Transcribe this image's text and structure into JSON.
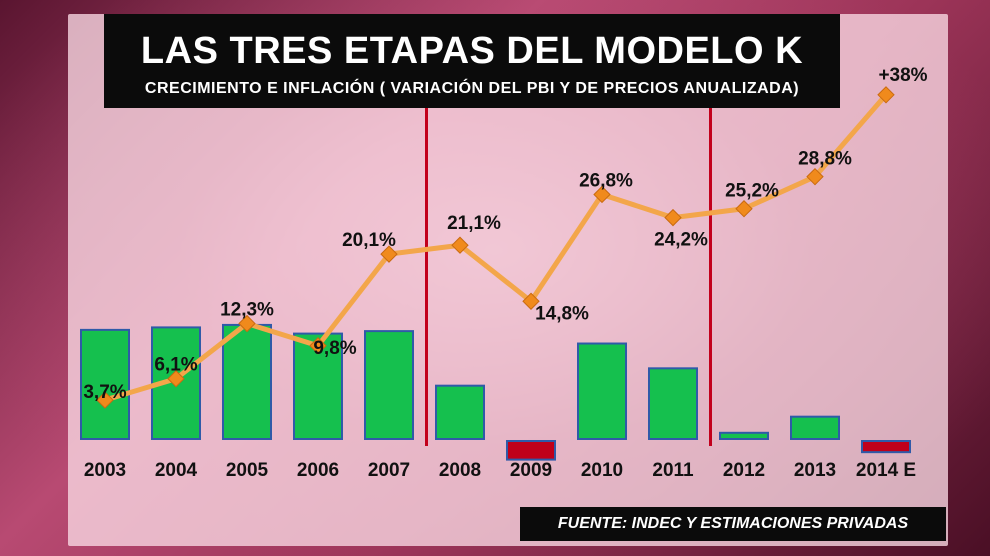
{
  "title": "LAS TRES ETAPAS DEL MODELO K",
  "subtitle": "CRECIMIENTO E INFLACIÓN ( VARIACIÓN DEL PBI Y DE PRECIOS ANUALIZADA)",
  "source": "FUENTE: INDEC Y ESTIMACIONES PRIVADAS",
  "colors": {
    "growth_positive": "#15c04e",
    "growth_negative": "#c0001a",
    "bar_border": "#2f5aa8",
    "inflation_line": "#f3a64a",
    "inflation_marker": "#f08a1c",
    "stage_divider": "#c2001c"
  },
  "chart_data": {
    "type": "bar",
    "title": "LAS TRES ETAPAS DEL MODELO K",
    "subtitle": "CRECIMIENTO E INFLACIÓN ( VARIACIÓN DEL PBI Y DE PRECIOS ANUALIZADA)",
    "categories": [
      "2003",
      "2004",
      "2005",
      "2006",
      "2007",
      "2008",
      "2009",
      "2010",
      "2011",
      "2012",
      "2013",
      "2014 E"
    ],
    "grid": false,
    "legend": "none",
    "series": [
      {
        "type": "bar",
        "values": [
          8.8,
          9.0,
          9.2,
          8.5,
          8.7,
          4.3,
          -1.5,
          7.7,
          5.7,
          0.5,
          1.8,
          -0.9
        ]
      },
      {
        "type": "line",
        "values": [
          3.7,
          6.1,
          12.3,
          9.8,
          20.1,
          21.1,
          14.8,
          26.8,
          24.2,
          25.2,
          28.8,
          38
        ],
        "labels": [
          "3,7%",
          "6,1%",
          "12,3%",
          "9,8%",
          "20,1%",
          "21,1%",
          "14,8%",
          "26,8%",
          "24,2%",
          "25,2%",
          "28,8%",
          "+38%"
        ]
      }
    ],
    "stage_dividers_after": [
      "2007",
      "2011"
    ]
  }
}
